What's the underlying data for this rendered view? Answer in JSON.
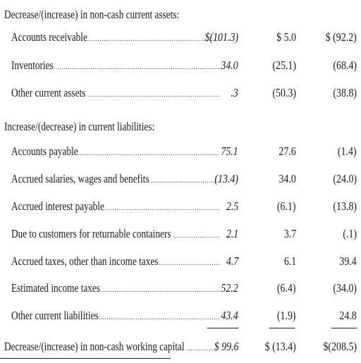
{
  "sections": [
    {
      "heading": "Decrease/(increase) in non-cash current assets:",
      "rows": [
        {
          "label": "Accounts receivable",
          "v1": "$(101.3)",
          "v2": "$ 5.0",
          "v3": "$ (92.2)"
        },
        {
          "label": "Inventories",
          "v1": "34.0",
          "v2": "(25.1)",
          "v3": "(68.4)"
        },
        {
          "label": "Other current assets",
          "v1": ".3",
          "v2": "(50.3)",
          "v3": "(38.8)"
        }
      ]
    },
    {
      "heading": "Increase/(decrease) in current liabilities:",
      "rows": [
        {
          "label": "Accounts payable",
          "v1": "75.1",
          "v2": "27.6",
          "v3": "(1.4)"
        },
        {
          "label": "Accrued salaries, wages and benefits",
          "v1": "(13.4)",
          "v2": "34.0",
          "v3": "(24.0)"
        },
        {
          "label": "Accrued interest payable",
          "v1": "2.5",
          "v2": "(6.1)",
          "v3": "(13.8)"
        },
        {
          "label": "Due to customers for returnable containers",
          "v1": "2.1",
          "v2": "3.7",
          "v3": "(.1)"
        },
        {
          "label": "Accrued taxes, other than income taxes",
          "v1": "4.7",
          "v2": "6.1",
          "v3": "39.4"
        },
        {
          "label": "Estimated income taxes",
          "v1": "52.2",
          "v2": "(6.4)",
          "v3": "(34.0)"
        },
        {
          "label": "Other current liabilities",
          "v1": "43.4",
          "v2": "(1.9)",
          "v3": "24.8"
        }
      ]
    }
  ],
  "total": {
    "label": "Decrease/(increase) in non-cash working capital",
    "v1": "$ 99.6",
    "v2": "$ (13.4)",
    "v3": "$(208.5)"
  }
}
